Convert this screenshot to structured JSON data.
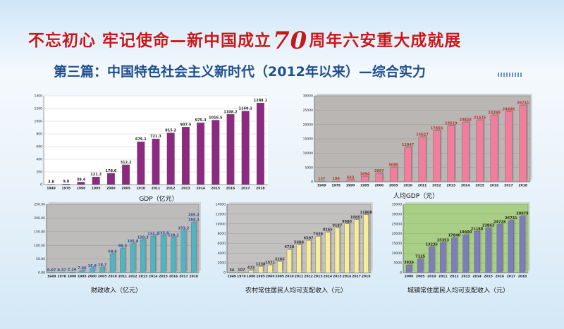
{
  "header": {
    "title_left": "不忘初心 牢记使命—新中国成立",
    "title_seventy": "70",
    "title_right": "周年六安重大成就展",
    "subtitle": "第三篇：中国特色社会主义新时代（2012年以来）—综合实力"
  },
  "chart_data": [
    {
      "id": "gdp",
      "type": "bar",
      "categories": [
        "1949",
        "1978",
        "1990",
        "1995",
        "2000",
        "2005",
        "2010",
        "2011",
        "2012",
        "2013",
        "2014",
        "2015",
        "2016",
        "2017",
        "2018"
      ],
      "values": [
        3.8,
        9.8,
        39.4,
        121.3,
        178.6,
        312.2,
        676.1,
        721.3,
        815.2,
        907.5,
        975.3,
        1016.5,
        1108.2,
        1160.1,
        1288.1
      ],
      "labels": [
        "3.8",
        "9.8",
        "39.4",
        "121.3",
        "178.6",
        "312.2",
        "676.1",
        "721.3",
        "815.2",
        "907.5",
        "975.3",
        "1016.5",
        "1108.2",
        "1160.1",
        "1288.1"
      ],
      "xlabel": "GDP（亿元）",
      "ylim": [
        0,
        1400
      ],
      "yticks": [
        0,
        200,
        400,
        600,
        800,
        1000,
        1200,
        1400
      ],
      "ytick_labels": [
        "0",
        "200",
        "400",
        "600",
        "800",
        "1000",
        "1200",
        "1400"
      ],
      "colors": {
        "bar": "#8c2a82",
        "label": "#222222",
        "plot_bg": "#ffffff",
        "grid": "#cfcfcf"
      }
    },
    {
      "id": "gdp_per_capita",
      "type": "bar",
      "categories": [
        "1949",
        "1978",
        "1990",
        "1995",
        "2000",
        "2005",
        "2010",
        "2011",
        "2012",
        "2013",
        "2014",
        "2015",
        "2016",
        "2017",
        "2018"
      ],
      "values": [
        127,
        186,
        643,
        1894,
        2897,
        5095,
        12047,
        15627,
        17856,
        19519,
        20828,
        21525,
        23290,
        24406,
        26731
      ],
      "labels": [
        "127",
        "186",
        "643",
        "1894",
        "2897",
        "5095",
        "12047",
        "15627",
        "17856",
        "19519",
        "20828",
        "21525",
        "23290",
        "24406",
        "26731"
      ],
      "xlabel": "人均GDP（元）",
      "ylim": [
        0,
        30000
      ],
      "yticks": [
        0,
        5000,
        10000,
        15000,
        20000,
        25000,
        30000
      ],
      "ytick_labels": [
        "0",
        "5000",
        "10000",
        "15000",
        "20000",
        "25000",
        "30000"
      ],
      "colors": {
        "bar": "#f27d9c",
        "label": "#d12a2a",
        "plot_bg": "#b9b6b4",
        "grid": "#9a9796"
      }
    },
    {
      "id": "fiscal_revenue",
      "type": "bar",
      "categories": [
        "1949",
        "1978",
        "1990",
        "1995",
        "2000",
        "2005",
        "2010",
        "2011",
        "2012",
        "2013",
        "2014",
        "2015",
        "2016",
        "2017",
        "2018"
      ],
      "values": [
        0.07,
        0.37,
        2.14,
        7.46,
        15.8,
        18.7,
        68.6,
        88.5,
        105.8,
        120.3,
        133.2,
        135.8,
        128.2,
        153.2,
        184.1
      ],
      "labels": [
        "0.07",
        "0.37",
        "2.14",
        "7.46",
        "15.8",
        "18.7",
        "68.6",
        "88.5",
        "105.8",
        "120.3",
        "133.2",
        "135.8",
        "128.2",
        "153.2",
        "184.1"
      ],
      "extra_label": "205.2",
      "xlabel": "财政收入（亿元）",
      "ylim": [
        0,
        250
      ],
      "yticks": [
        0,
        50,
        100,
        150,
        200,
        250
      ],
      "ytick_labels": [
        "0.00",
        "50.00",
        "100.00",
        "150.00",
        "200.00",
        "250.00"
      ],
      "colors": {
        "bar": "#4fb5c5",
        "label": "#1d4f9a",
        "plot_bg": "#bdbcbb",
        "grid": "#9a9998"
      }
    },
    {
      "id": "rural_income",
      "type": "bar",
      "categories": [
        "1949",
        "1978",
        "1990",
        "1995",
        "2000",
        "2005",
        "2010",
        "2011",
        "2012",
        "2013",
        "2014",
        "2015",
        "2016",
        "2017",
        "2018"
      ],
      "values": [
        34,
        107,
        473,
        1238,
        1571,
        2266,
        4738,
        5688,
        6597,
        7436,
        8265,
        9187,
        9980,
        10857,
        11868
      ],
      "labels": [
        "34",
        "107",
        "473",
        "1238",
        "1571",
        "2266",
        "4738",
        "5688",
        "6597",
        "7436",
        "8265",
        "9187",
        "9980",
        "10857",
        "11868"
      ],
      "xlabel": "农村常住居民人均可支配收入（元）",
      "ylim": [
        0,
        14000
      ],
      "yticks": [
        0,
        2000,
        4000,
        6000,
        8000,
        10000,
        12000,
        14000
      ],
      "ytick_labels": [
        "0",
        "2000",
        "4000",
        "6000",
        "8000",
        "10000",
        "12000",
        "14000"
      ],
      "colors": {
        "bar": "#f6ec9a",
        "label": "#333333",
        "plot_bg": "#c3c1bf",
        "grid": "#a19f9d"
      }
    },
    {
      "id": "urban_income",
      "type": "bar",
      "categories": [
        "2000",
        "2005",
        "2010",
        "2011",
        "2012",
        "2013",
        "2014",
        "2015",
        "2016",
        "2017",
        "2018"
      ],
      "values": [
        3936,
        7125,
        13235,
        15353,
        17840,
        19400,
        21188,
        22863,
        24728,
        26731,
        28979
      ],
      "labels": [
        "3936",
        "7125",
        "13235",
        "15353",
        "17840",
        "19400",
        "21188",
        "22863",
        "24728",
        "26731",
        "28979"
      ],
      "xlabel": "城镇常住居民人均可支配收入（元）",
      "ylim": [
        0,
        35000
      ],
      "yticks": [
        0,
        5000,
        10000,
        15000,
        20000,
        25000,
        30000,
        35000
      ],
      "ytick_labels": [
        "0",
        "5000",
        "10000",
        "15000",
        "20000",
        "25000",
        "30000",
        "35000"
      ],
      "colors": {
        "bar": "#7d7cbc",
        "label": "#222222",
        "plot_bg": "#a9cf86",
        "grid": "#8ab468"
      }
    }
  ]
}
